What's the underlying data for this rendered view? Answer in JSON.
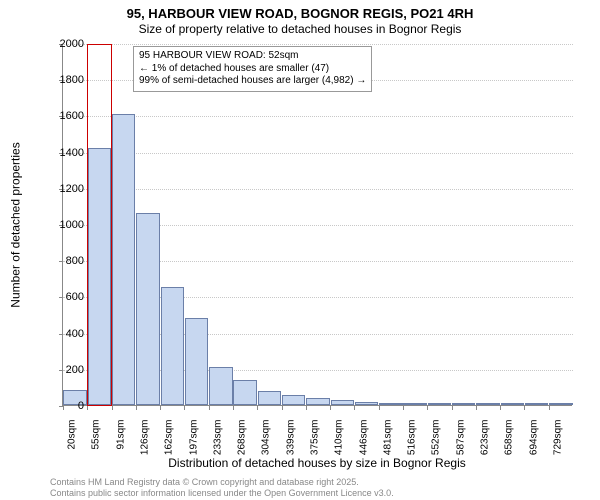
{
  "title_line1": "95, HARBOUR VIEW ROAD, BOGNOR REGIS, PO21 4RH",
  "title_line2": "Size of property relative to detached houses in Bognor Regis",
  "ylabel": "Number of detached properties",
  "xlabel": "Distribution of detached houses by size in Bognor Regis",
  "chart": {
    "type": "histogram",
    "ylim": [
      0,
      2000
    ],
    "ytick_step": 200,
    "bar_fill": "#c7d7f0",
    "bar_border": "#6b7fa8",
    "grid_color": "#c8c8c8",
    "axis_color": "#888888",
    "background_color": "#ffffff",
    "highlight_color": "#cc0000",
    "highlight_bar_index": 1,
    "x_categories": [
      "20sqm",
      "55sqm",
      "91sqm",
      "126sqm",
      "162sqm",
      "197sqm",
      "233sqm",
      "268sqm",
      "304sqm",
      "339sqm",
      "375sqm",
      "410sqm",
      "446sqm",
      "481sqm",
      "516sqm",
      "552sqm",
      "587sqm",
      "623sqm",
      "658sqm",
      "694sqm",
      "729sqm"
    ],
    "values": [
      85,
      1420,
      1610,
      1060,
      650,
      480,
      210,
      140,
      78,
      55,
      40,
      25,
      18,
      12,
      8,
      6,
      5,
      4,
      3,
      2,
      2
    ]
  },
  "annotation": {
    "line1": "95 HARBOUR VIEW ROAD: 52sqm",
    "line2": "← 1% of detached houses are smaller (47)",
    "line3": "99% of semi-detached houses are larger (4,982) →"
  },
  "footer": {
    "line1": "Contains HM Land Registry data © Crown copyright and database right 2025.",
    "line2": "Contains public sector information licensed under the Open Government Licence v3.0."
  }
}
